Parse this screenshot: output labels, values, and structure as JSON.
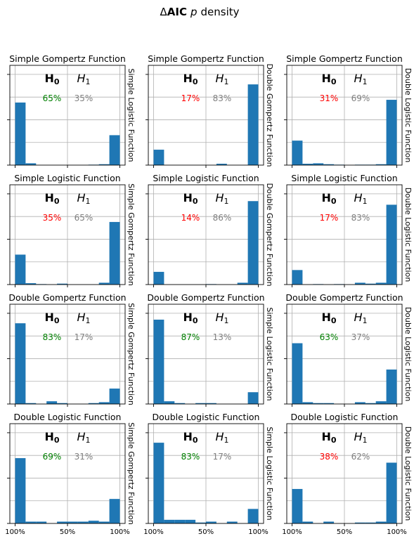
{
  "figure": {
    "title_prefix": "Δ",
    "title_bold": "AIC",
    "title_italic": "p",
    "title_suffix": "density"
  },
  "labels": {
    "h0_letter": "H",
    "h0_sub": "0",
    "h1_letter": "H",
    "h1_sub": "1"
  },
  "colors": {
    "bar": "#1f77b4",
    "grid": "#b0b0b0",
    "green": "#008000",
    "red": "#ff0000",
    "gray": "#808080"
  },
  "chart_data": [
    {
      "type": "bar",
      "title": "Simple Gompertz Function",
      "side_label": "Simple Logistic Function",
      "h0_pct": "65%",
      "h1_pct": "35%",
      "h0_color": "green",
      "values": [
        0.69,
        0.02,
        0,
        0,
        0,
        0,
        0,
        0.005,
        0.01,
        0.33
      ],
      "ylim": [
        0,
        1.1
      ],
      "x_ticks": [
        "100%",
        "50%",
        "100%"
      ]
    },
    {
      "type": "bar",
      "title": "Simple Gompertz Function",
      "side_label": "Double Gompertz Function",
      "h0_pct": "17%",
      "h1_pct": "83%",
      "h0_color": "red",
      "values": [
        0.17,
        0,
        0,
        0,
        0,
        0,
        0.015,
        0,
        0,
        0.89
      ],
      "ylim": [
        0,
        1.1
      ],
      "x_ticks": [
        "100%",
        "50%",
        "100%"
      ]
    },
    {
      "type": "bar",
      "title": "Simple Gompertz Function",
      "side_label": "Double Logistic Function",
      "h0_pct": "31%",
      "h1_pct": "69%",
      "h0_color": "red",
      "values": [
        0.27,
        0.015,
        0.02,
        0.01,
        0.005,
        0,
        0.005,
        0.005,
        0.01,
        0.72
      ],
      "ylim": [
        0,
        1.1
      ],
      "x_ticks": [
        "100%",
        "50%",
        "100%"
      ]
    },
    {
      "type": "bar",
      "title": "Simple Logistic Function",
      "side_label": "Simple Gompertz Function",
      "h0_pct": "35%",
      "h1_pct": "65%",
      "h0_color": "red",
      "values": [
        0.33,
        0.015,
        0.005,
        0,
        0.01,
        0,
        0,
        0,
        0.02,
        0.69
      ],
      "ylim": [
        0,
        1.1
      ],
      "x_ticks": [
        "100%",
        "50%",
        "100%"
      ]
    },
    {
      "type": "bar",
      "title": "Simple Logistic Function",
      "side_label": "Double Gompertz Function",
      "h0_pct": "14%",
      "h1_pct": "86%",
      "h0_color": "red",
      "values": [
        0.14,
        0,
        0,
        0,
        0,
        0.005,
        0,
        0,
        0.02,
        0.92
      ],
      "ylim": [
        0,
        1.1
      ],
      "x_ticks": [
        "100%",
        "50%",
        "100%"
      ]
    },
    {
      "type": "bar",
      "title": "Simple Logistic Function",
      "side_label": "Double Logistic Function",
      "h0_pct": "17%",
      "h1_pct": "83%",
      "h0_color": "red",
      "values": [
        0.16,
        0,
        0.005,
        0,
        0.005,
        0,
        0.02,
        0.01,
        0.02,
        0.88
      ],
      "ylim": [
        0,
        1.1
      ],
      "x_ticks": [
        "100%",
        "50%",
        "100%"
      ]
    },
    {
      "type": "bar",
      "title": "Double Gompertz Function",
      "side_label": "Simple Gompertz Function",
      "h0_pct": "83%",
      "h1_pct": "17%",
      "h0_color": "green",
      "values": [
        0.89,
        0.01,
        0,
        0.03,
        0.01,
        0,
        0,
        0.01,
        0.02,
        0.17
      ],
      "ylim": [
        0,
        1.1
      ],
      "x_ticks": [
        "100%",
        "50%",
        "100%"
      ]
    },
    {
      "type": "bar",
      "title": "Double Gompertz Function",
      "side_label": "Simple Logistic Function",
      "h0_pct": "87%",
      "h1_pct": "13%",
      "h0_color": "green",
      "values": [
        0.93,
        0.03,
        0.01,
        0,
        0.01,
        0.01,
        0,
        0,
        0,
        0.13
      ],
      "ylim": [
        0,
        1.1
      ],
      "x_ticks": [
        "100%",
        "50%",
        "100%"
      ]
    },
    {
      "type": "bar",
      "title": "Double Gompertz Function",
      "side_label": "Double Logistic Function",
      "h0_pct": "63%",
      "h1_pct": "37%",
      "h0_color": "green",
      "values": [
        0.67,
        0.02,
        0.01,
        0.01,
        0,
        0,
        0.02,
        0.01,
        0.03,
        0.38
      ],
      "ylim": [
        0,
        1.1
      ],
      "x_ticks": [
        "100%",
        "50%",
        "100%"
      ]
    },
    {
      "type": "bar",
      "title": "Double Logistic Function",
      "side_label": "Simple Gompertz Function",
      "h0_pct": "69%",
      "h1_pct": "31%",
      "h0_color": "green",
      "values": [
        0.72,
        0.02,
        0.02,
        0,
        0.02,
        0.02,
        0.02,
        0.03,
        0.02,
        0.27
      ],
      "ylim": [
        0,
        1.1
      ],
      "x_ticks": [
        "100%",
        "50%",
        "100%"
      ]
    },
    {
      "type": "bar",
      "title": "Double Logistic Function",
      "side_label": "Simple Logistic Function",
      "h0_pct": "83%",
      "h1_pct": "17%",
      "h0_color": "green",
      "values": [
        0.89,
        0.04,
        0.04,
        0.04,
        0.01,
        0.02,
        0,
        0.02,
        0,
        0.16
      ],
      "ylim": [
        0,
        1.1
      ],
      "x_ticks": [
        "100%",
        "50%",
        "100%"
      ]
    },
    {
      "type": "bar",
      "title": "Double Logistic Function",
      "side_label": "Double Logistic Function",
      "h0_pct": "38%",
      "h1_pct": "62%",
      "h0_color": "red",
      "values": [
        0.38,
        0.02,
        0,
        0.02,
        0,
        0,
        0.01,
        0.01,
        0.02,
        0.67
      ],
      "ylim": [
        0,
        1.1
      ],
      "x_ticks": [
        "100%",
        "50%",
        "100%"
      ]
    }
  ]
}
